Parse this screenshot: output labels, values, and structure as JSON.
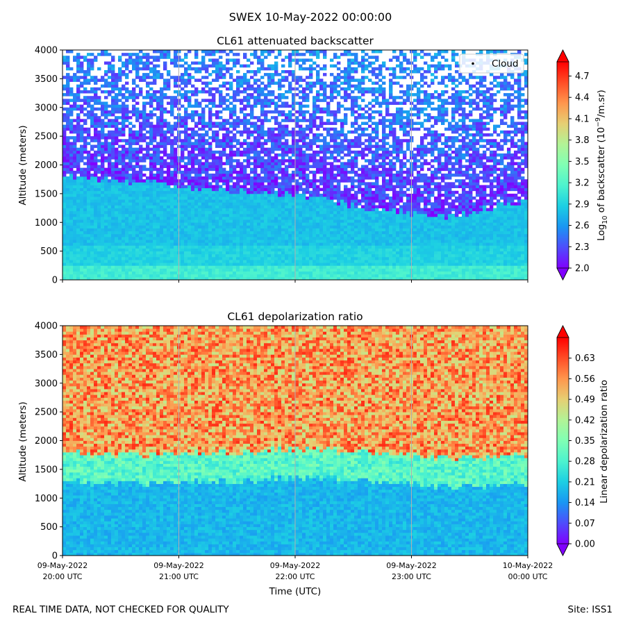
{
  "suptitle": "SWEX 10-May-2022 00:00:00",
  "footer_left": "REAL TIME DATA, NOT CHECKED FOR QUALITY",
  "footer_right": "Site: ISS1",
  "xlabel": "Time (UTC)",
  "colors": {
    "rainbow": [
      "#8000ff",
      "#4e4dfc",
      "#1996f3",
      "#1ccfe3",
      "#4df3ce",
      "#80ffb4",
      "#b2f396",
      "#e6cf73",
      "#ff964d",
      "#ff4d26",
      "#ff0000"
    ]
  },
  "chart_data": [
    {
      "type": "heatmap",
      "title": "CL61 attenuated backscatter",
      "ylabel": "Altitude (meters)",
      "ylim": [
        0,
        4000
      ],
      "yticks": [
        "0",
        "500",
        "1000",
        "1500",
        "2000",
        "2500",
        "3000",
        "3500",
        "4000"
      ],
      "x_range_utc": [
        "2022-05-09 20:00",
        "2022-05-10 00:00"
      ],
      "xtick_labels_visible": false,
      "grid": "vertical",
      "legend": {
        "label": "Cloud",
        "position": "top-right"
      },
      "colorbar": {
        "label_main": "Log",
        "label_sub": "10",
        "label_mid": " of backscatter (10",
        "label_sup": "−9",
        "label_end": "/m.sr)",
        "range": [
          2.0,
          4.9
        ],
        "ticks": [
          "2.0",
          "2.3",
          "2.6",
          "2.9",
          "3.2",
          "3.5",
          "3.8",
          "4.1",
          "4.4",
          "4.7"
        ],
        "extend": "both",
        "colormap": "rainbow"
      },
      "profile_summary": {
        "surface_layer_top_m": 250,
        "boundary_layer_top_m": [
          1800,
          1700,
          1550,
          1500,
          1250,
          1100,
          1400
        ],
        "surface_value": 3.1,
        "boundary_layer_value": 2.8,
        "free_troposphere_value": 2.2
      }
    },
    {
      "type": "heatmap",
      "title": "CL61 depolarization ratio",
      "ylabel": "Altitude (meters)",
      "ylim": [
        0,
        4000
      ],
      "yticks": [
        "0",
        "500",
        "1000",
        "1500",
        "2000",
        "2500",
        "3000",
        "3500",
        "4000"
      ],
      "x_range_utc": [
        "2022-05-09 20:00",
        "2022-05-10 00:00"
      ],
      "xticks": [
        {
          "date": "09-May-2022",
          "time": "20:00 UTC"
        },
        {
          "date": "09-May-2022",
          "time": "21:00 UTC"
        },
        {
          "date": "09-May-2022",
          "time": "22:00 UTC"
        },
        {
          "date": "09-May-2022",
          "time": "23:00 UTC"
        },
        {
          "date": "10-May-2022",
          "time": "00:00 UTC"
        }
      ],
      "grid": "vertical",
      "colorbar": {
        "label": "Linear depolarization ratio",
        "range": [
          0.0,
          0.7
        ],
        "ticks": [
          "0.00",
          "0.07",
          "0.14",
          "0.21",
          "0.28",
          "0.35",
          "0.42",
          "0.49",
          "0.56",
          "0.63"
        ],
        "extend": "both",
        "colormap": "rainbow"
      },
      "profile_summary": {
        "boundary_layer_top_m": [
          1500,
          1450,
          1500,
          1550,
          1500,
          1400,
          1450
        ],
        "boundary_layer_value": 0.18,
        "transition_value": 0.3,
        "free_troposphere_value": 0.55
      }
    }
  ]
}
